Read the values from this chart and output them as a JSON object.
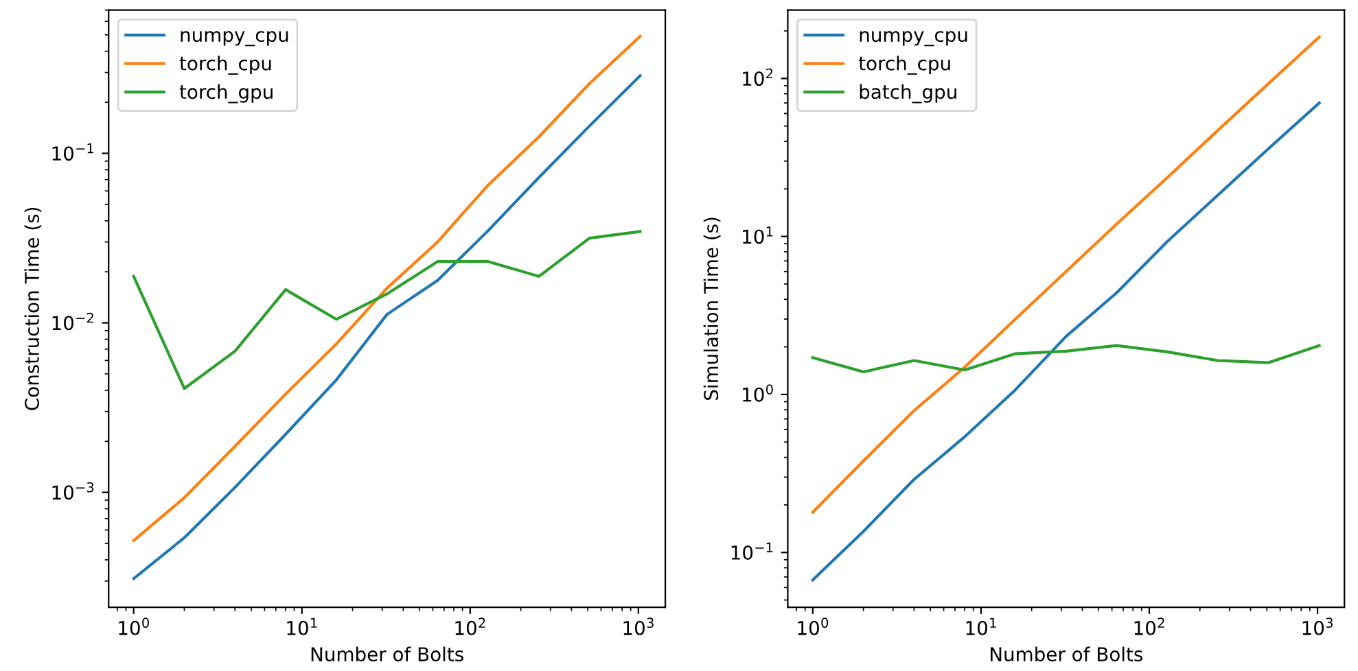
{
  "chart_data": [
    {
      "type": "line",
      "xlabel": "Number of Bolts",
      "ylabel": "Construction Time (s)",
      "log": "xy",
      "legend": "top left",
      "grid": false,
      "x": [
        1,
        2,
        4,
        8,
        16,
        32,
        64,
        128,
        256,
        512,
        1024
      ],
      "xlim": [
        0.71,
        1445
      ],
      "ylim": [
        0.00021,
        0.7
      ],
      "xticks": [
        {
          "value": 1,
          "label": "10$^{0}$"
        },
        {
          "value": 10,
          "label": "10$^{1}$"
        },
        {
          "value": 100,
          "label": "10$^{2}$"
        },
        {
          "value": 1000,
          "label": "10$^{3}$"
        }
      ],
      "yticks": [
        {
          "value": 0.001,
          "label": "10$^{−3}$"
        },
        {
          "value": 0.01,
          "label": "10$^{−2}$"
        },
        {
          "value": 0.1,
          "label": "10$^{−1}$"
        }
      ],
      "series": [
        {
          "name": "numpy_cpu",
          "color": "#1f77b4",
          "values": [
            0.00031,
            0.00054,
            0.00107,
            0.0022,
            0.0046,
            0.0112,
            0.0178,
            0.035,
            0.072,
            0.145,
            0.287
          ]
        },
        {
          "name": "torch_cpu",
          "color": "#ff7f0e",
          "values": [
            0.00052,
            0.00093,
            0.00187,
            0.0038,
            0.0075,
            0.016,
            0.03,
            0.065,
            0.125,
            0.258,
            0.49
          ]
        },
        {
          "name": "torch_gpu",
          "color": "#2ca02c",
          "values": [
            0.0188,
            0.0041,
            0.0068,
            0.0157,
            0.0105,
            0.0148,
            0.023,
            0.023,
            0.0188,
            0.0316,
            0.0346
          ]
        }
      ]
    },
    {
      "type": "line",
      "xlabel": "Number of Bolts",
      "ylabel": "Simulation Time (s)",
      "log": "xy",
      "legend": "top left",
      "grid": false,
      "x": [
        1,
        2,
        4,
        8,
        16,
        32,
        64,
        128,
        256,
        512,
        1024
      ],
      "xlim": [
        0.71,
        1445
      ],
      "ylim": [
        0.045,
        271
      ],
      "xticks": [
        {
          "value": 1,
          "label": "10$^{0}$"
        },
        {
          "value": 10,
          "label": "10$^{1}$"
        },
        {
          "value": 100,
          "label": "10$^{2}$"
        },
        {
          "value": 1000,
          "label": "10$^{3}$"
        }
      ],
      "yticks": [
        {
          "value": 0.1,
          "label": "10$^{−1}$"
        },
        {
          "value": 1,
          "label": "10$^{0}$"
        },
        {
          "value": 10,
          "label": "10$^{1}$"
        },
        {
          "value": 100,
          "label": "10$^{2}$"
        }
      ],
      "series": [
        {
          "name": "numpy_cpu",
          "color": "#1f77b4",
          "values": [
            0.067,
            0.136,
            0.29,
            0.54,
            1.07,
            2.33,
            4.4,
            9.3,
            18.3,
            36,
            70
          ]
        },
        {
          "name": "torch_cpu",
          "color": "#ff7f0e",
          "values": [
            0.18,
            0.38,
            0.79,
            1.49,
            3.0,
            6.0,
            12.0,
            23.6,
            47,
            93,
            183
          ]
        },
        {
          "name": "batch_gpu",
          "color": "#2ca02c",
          "values": [
            1.71,
            1.39,
            1.64,
            1.43,
            1.81,
            1.88,
            2.04,
            1.86,
            1.64,
            1.59,
            2.04
          ]
        }
      ]
    }
  ]
}
